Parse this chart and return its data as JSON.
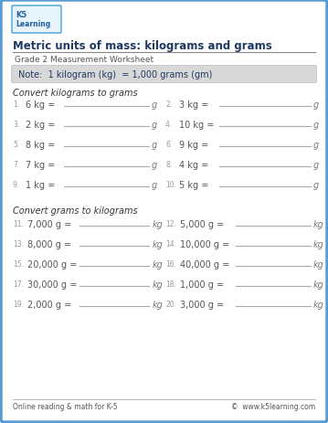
{
  "title": "Metric units of mass: kilograms and grams",
  "grade_label": "Grade 2 Measurement Worksheet",
  "note": "Note:  1 kilogram (kg)  = 1,000 grams (gm)",
  "section1_label": "Convert kilograms to grams",
  "section2_label": "Convert grams to kilograms",
  "kg_to_g_problems": [
    [
      "1.",
      "6 kg =",
      "g",
      "2.",
      "3 kg =",
      "g"
    ],
    [
      "3.",
      "2 kg =",
      "g",
      "4.",
      "10 kg =",
      "g"
    ],
    [
      "5.",
      "8 kg =",
      "g",
      "6.",
      "9 kg =",
      "g"
    ],
    [
      "7.",
      "7 kg =",
      "g",
      "8.",
      "4 kg =",
      "g"
    ],
    [
      "9.",
      "1 kg =",
      "g",
      "10.",
      "5 kg =",
      "g"
    ]
  ],
  "g_to_kg_problems": [
    [
      "11.",
      "7,000 g =",
      "kg",
      "12.",
      "5,000 g =",
      "kg"
    ],
    [
      "13.",
      "8,000 g =",
      "kg",
      "14.",
      "10,000 g =",
      "kg"
    ],
    [
      "15.",
      "20,000 g =",
      "kg",
      "16.",
      "40,000 g =",
      "kg"
    ],
    [
      "17.",
      "30,000 g =",
      "kg",
      "18.",
      "1,000 g =",
      "kg"
    ],
    [
      "19.",
      "2,000 g =",
      "kg",
      "20.",
      "3,000 g =",
      "kg"
    ]
  ],
  "footer_left": "Online reading & math for K-5",
  "footer_right": "©  www.k5learning.com",
  "bg_color": "#ffffff",
  "border_color": "#5b9bd5",
  "title_color": "#1f3864",
  "text_color": "#555555",
  "note_bg": "#d8d8d8",
  "section_color": "#333333",
  "num_color": "#999999",
  "line_color": "#aaaaaa",
  "unit_color": "#777777"
}
